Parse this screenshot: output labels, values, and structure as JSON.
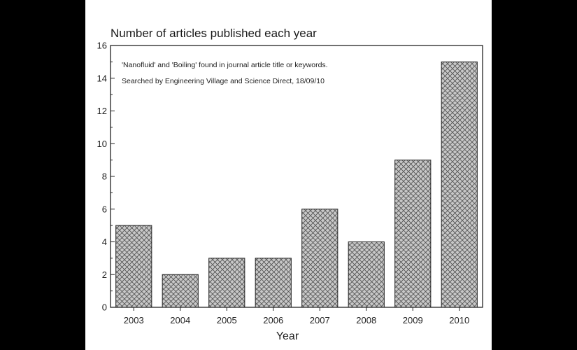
{
  "chart_data": {
    "type": "bar",
    "title": "Number of articles published each year",
    "annotations": [
      "'Nanofluid' and 'Boiling' found in journal article title or keywords.",
      "Searched by Engineering Village and Science Direct, 18/09/10"
    ],
    "xlabel": "Year",
    "ylabel": "",
    "categories": [
      "2003",
      "2004",
      "2005",
      "2006",
      "2007",
      "2008",
      "2009",
      "2010"
    ],
    "values": [
      5,
      2,
      3,
      3,
      6,
      4,
      9,
      15
    ],
    "ylim": [
      0,
      16
    ],
    "yticks": [
      0,
      2,
      4,
      6,
      8,
      10,
      12,
      14,
      16
    ],
    "grid": false,
    "legend": "none",
    "bar_fill": "crosshatch",
    "colors": {
      "bar_fill": "#c8c8c8",
      "bar_hatch": "#555555",
      "bar_edge": "#222222",
      "axis": "#222222",
      "page_background": "#000000",
      "panel_background": "#ffffff"
    }
  }
}
